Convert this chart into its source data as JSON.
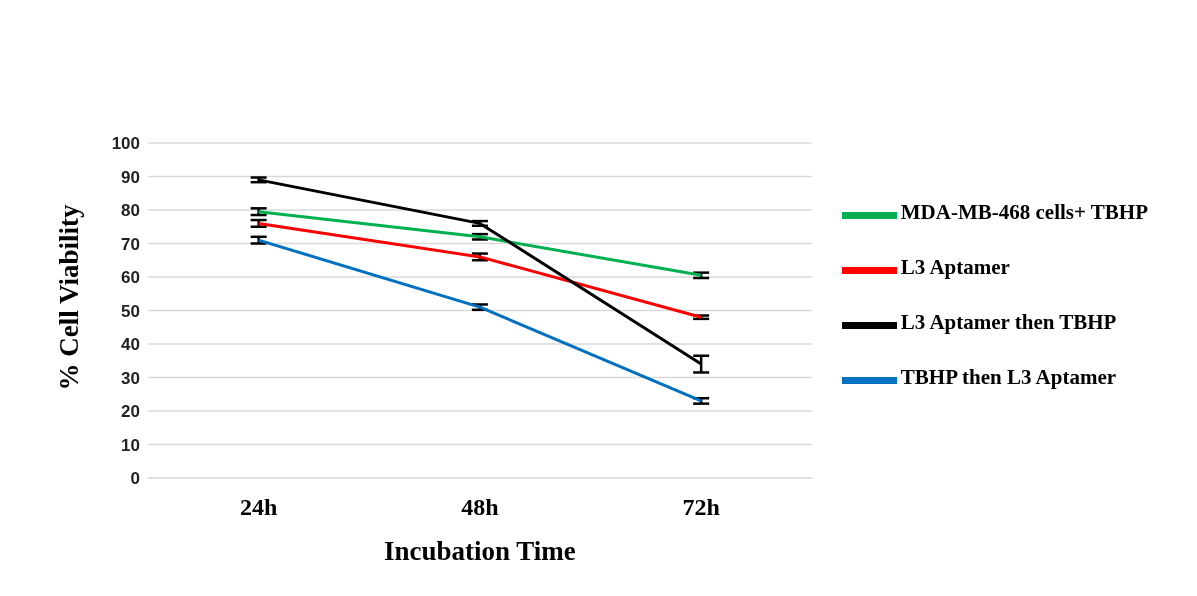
{
  "chart_data": {
    "type": "line",
    "xlabel": "Incubation Time",
    "ylabel": "% Cell Viability",
    "categories": [
      "24h",
      "48h",
      "72h"
    ],
    "series": [
      {
        "name": "MDA-MB-468 cells+ TBHP",
        "color": "#00b050",
        "values": [
          79.5,
          72,
          60.5
        ],
        "errors": [
          1,
          0.8,
          0.8
        ]
      },
      {
        "name": "L3 Aptamer",
        "color": "#ff0000",
        "values": [
          76,
          66,
          48
        ],
        "errors": [
          1,
          1,
          0.5
        ]
      },
      {
        "name": "L3 Aptamer then TBHP",
        "color": "#000000",
        "values": [
          89,
          76,
          34
        ],
        "errors": [
          0.7,
          0.7,
          2.5
        ]
      },
      {
        "name": "TBHP then L3 Aptamer",
        "color": "#0070c0",
        "values": [
          71,
          51,
          23
        ],
        "errors": [
          1,
          0.8,
          0.8
        ]
      }
    ],
    "ylim": [
      0,
      100
    ],
    "yticks": [
      0,
      10,
      20,
      30,
      40,
      50,
      60,
      70,
      80,
      90,
      100
    ],
    "grid": "y",
    "legend": "right",
    "marker": "none",
    "line_style": "solid"
  }
}
